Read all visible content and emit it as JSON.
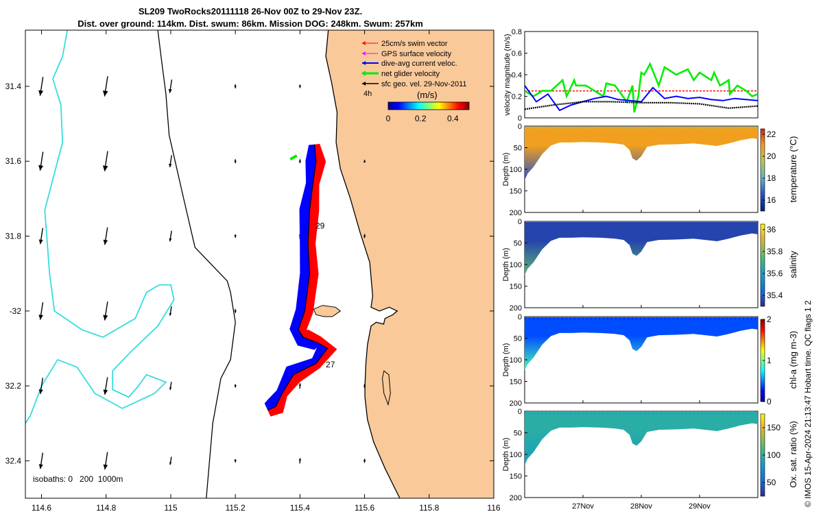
{
  "title": {
    "line1": "SL209 TwoRocks20111118 26-Nov 00Z to 29-Nov 23Z.",
    "line2": "Dist. over ground: 114km. Dist. swum: 86km. Mission DOG: 248km. Swum: 257km"
  },
  "credit": "© IMOS 15-Apr-2024 21:13:47 Hobart time. QC flags 1  2",
  "colors": {
    "land": "#f9c99a",
    "coast_iso": "#000000",
    "iso_1000": "#33dddd",
    "swim": "#ff0000",
    "dac": "#0000ff",
    "glider": "#00ee00",
    "sfc_geo": "#000000",
    "gps": "#ff00ff"
  },
  "chart_data": [
    {
      "id": "map",
      "type": "scatter",
      "xlim": [
        114.55,
        116
      ],
      "ylim": [
        -32.5,
        -31.25
      ],
      "xticks": [
        114.6,
        114.8,
        115,
        115.2,
        115.4,
        115.6,
        115.8,
        116
      ],
      "xtick_labels": [
        "114.6",
        "114.8",
        "115",
        "115.2",
        "115.4",
        "115.6",
        "115.8",
        "116"
      ],
      "yticks": [
        -31.4,
        -31.6,
        -31.8,
        -32,
        -32.2,
        -32.4
      ],
      "ytick_labels": [
        "31.4",
        "31.6",
        "31.8",
        "-32",
        "32.2",
        "32.4"
      ],
      "legend": {
        "placement": "top-right",
        "items": [
          {
            "label": "25cm/s swim vector",
            "color": "#ff0000"
          },
          {
            "label": "GPS surface velocity",
            "color": "#ff00ff"
          },
          {
            "label": "dive-avg current veloc.",
            "color": "#0000ff"
          },
          {
            "label": "net glider velocity",
            "color": "#00ee00"
          },
          {
            "label": "sfc geo. vel. 29-Nov-2011",
            "color": "#000000"
          }
        ]
      },
      "colorbar": {
        "label": "(m/s)",
        "range": [
          0,
          0.5
        ],
        "ticks": [
          0,
          0.2,
          0.4
        ],
        "tick_labels": [
          "0",
          "0.2",
          "0.4"
        ],
        "note": "4h"
      },
      "isobaths_label": "isobaths: 0   200  1000m",
      "track_labels": [
        {
          "text": "29",
          "lon": 115.448,
          "lat": -31.78
        },
        {
          "text": "27",
          "lon": 115.48,
          "lat": -32.15
        }
      ],
      "track": [
        [
          115.445,
          -31.555
        ],
        [
          115.45,
          -31.6
        ],
        [
          115.44,
          -31.66
        ],
        [
          115.43,
          -31.73
        ],
        [
          115.425,
          -31.82
        ],
        [
          115.43,
          -31.9
        ],
        [
          115.415,
          -32.0
        ],
        [
          115.395,
          -32.05
        ],
        [
          115.41,
          -32.07
        ],
        [
          115.455,
          -32.085
        ],
        [
          115.485,
          -32.1
        ],
        [
          115.45,
          -32.14
        ],
        [
          115.38,
          -32.17
        ],
        [
          115.345,
          -32.22
        ],
        [
          115.325,
          -32.255
        ],
        [
          115.3,
          -32.265
        ]
      ],
      "coastline": [
        [
          115.4878,
          -31.25
        ],
        [
          115.48,
          -31.32
        ],
        [
          115.498,
          -31.39
        ],
        [
          115.515,
          -31.47
        ],
        [
          115.512,
          -31.55
        ],
        [
          115.525,
          -31.62
        ],
        [
          115.556,
          -31.7
        ],
        [
          115.586,
          -31.79
        ],
        [
          115.616,
          -31.87
        ],
        [
          115.625,
          -31.96
        ],
        [
          115.62,
          -31.99
        ],
        [
          115.646,
          -32.0
        ],
        [
          115.676,
          -31.99
        ],
        [
          115.701,
          -32.0
        ],
        [
          115.687,
          -32.01
        ],
        [
          115.663,
          -32.02
        ],
        [
          115.659,
          -32.035
        ],
        [
          115.636,
          -32.03
        ],
        [
          115.62,
          -32.04
        ],
        [
          115.609,
          -32.09
        ],
        [
          115.604,
          -32.14
        ],
        [
          115.601,
          -32.2
        ],
        [
          115.601,
          -32.23
        ],
        [
          115.609,
          -32.29
        ],
        [
          115.628,
          -32.35
        ],
        [
          115.663,
          -32.42
        ],
        [
          115.709,
          -32.5
        ]
      ],
      "isobath_200": [
        [
          114.96,
          -31.25
        ],
        [
          114.97,
          -31.32
        ],
        [
          114.985,
          -31.42
        ],
        [
          114.995,
          -31.53
        ],
        [
          115.04,
          -31.7
        ],
        [
          115.075,
          -31.83
        ],
        [
          115.175,
          -31.92
        ],
        [
          115.185,
          -31.95
        ],
        [
          115.2,
          -32.03
        ],
        [
          115.185,
          -32.13
        ],
        [
          115.155,
          -32.18
        ],
        [
          115.13,
          -32.3
        ],
        [
          115.11,
          -32.5
        ]
      ],
      "isobath_1000": [
        [
          114.68,
          -31.25
        ],
        [
          114.665,
          -31.32
        ],
        [
          114.635,
          -31.38
        ],
        [
          114.66,
          -31.45
        ],
        [
          114.665,
          -31.55
        ],
        [
          114.61,
          -31.73
        ],
        [
          114.625,
          -31.9
        ],
        [
          114.64,
          -32.0
        ],
        [
          114.725,
          -32.05
        ],
        [
          114.79,
          -32.07
        ],
        [
          114.89,
          -32.02
        ],
        [
          114.925,
          -31.95
        ],
        [
          114.965,
          -31.93
        ],
        [
          115.0,
          -31.93
        ],
        [
          115.01,
          -31.97
        ],
        [
          114.96,
          -32.04
        ],
        [
          114.875,
          -32.11
        ],
        [
          114.82,
          -32.16
        ],
        [
          114.82,
          -32.21
        ],
        [
          114.87,
          -32.23
        ],
        [
          114.9,
          -32.2
        ],
        [
          114.925,
          -32.17
        ],
        [
          114.985,
          -32.19
        ],
        [
          114.95,
          -32.22
        ],
        [
          114.85,
          -32.26
        ],
        [
          114.765,
          -32.22
        ],
        [
          114.71,
          -32.15
        ],
        [
          114.65,
          -32.13
        ],
        [
          114.6,
          -32.2
        ],
        [
          114.565,
          -32.28
        ],
        [
          114.55,
          -32.3
        ]
      ],
      "rottnest": [
        [
          115.442,
          -31.995
        ],
        [
          115.47,
          -31.985
        ],
        [
          115.51,
          -31.99
        ],
        [
          115.525,
          -32.0
        ],
        [
          115.5,
          -32.015
        ],
        [
          115.475,
          -32.015
        ],
        [
          115.45,
          -32.01
        ],
        [
          115.442,
          -31.995
        ]
      ],
      "garden_island": [
        [
          115.66,
          -32.16
        ],
        [
          115.675,
          -32.17
        ],
        [
          115.68,
          -32.22
        ],
        [
          115.673,
          -32.25
        ],
        [
          115.66,
          -32.22
        ],
        [
          115.655,
          -32.18
        ],
        [
          115.66,
          -32.16
        ]
      ]
    },
    {
      "id": "velocity",
      "type": "line",
      "ylabel": "velocity magnitude (m/s)",
      "ylim": [
        0,
        0.8
      ],
      "yticks": [
        0,
        0.2,
        0.4,
        0.6,
        0.8
      ],
      "ytick_labels": [
        "0",
        "0.2",
        "0.4",
        "0.6",
        "0.8"
      ],
      "xlim": [
        0,
        4
      ],
      "series": [
        {
          "key": "swim",
          "color": "#ff0000",
          "x": [
            0,
            4
          ],
          "y": [
            0.25,
            0.25
          ]
        },
        {
          "key": "glider",
          "color": "#00ee00",
          "x": [
            0.0,
            0.15,
            0.3,
            0.45,
            0.65,
            0.72,
            0.85,
            0.88,
            1.05,
            1.35,
            1.4,
            1.55,
            1.75,
            1.85,
            1.88,
            1.95,
            2.0,
            2.05,
            2.15,
            2.3,
            2.4,
            2.6,
            2.8,
            2.9,
            3.0,
            3.2,
            3.25,
            3.35,
            3.5,
            3.52,
            3.65,
            3.8,
            3.9,
            4.0
          ],
          "y": [
            0.25,
            0.2,
            0.25,
            0.25,
            0.35,
            0.2,
            0.35,
            0.3,
            0.3,
            0.2,
            0.32,
            0.3,
            0.15,
            0.3,
            0.05,
            0.2,
            0.42,
            0.4,
            0.5,
            0.3,
            0.47,
            0.4,
            0.45,
            0.35,
            0.42,
            0.35,
            0.42,
            0.3,
            0.35,
            0.22,
            0.3,
            0.25,
            0.2,
            0.22
          ]
        },
        {
          "key": "dac",
          "color": "#0000ff",
          "x": [
            0.0,
            0.2,
            0.4,
            0.6,
            0.8,
            1.0,
            1.2,
            1.4,
            1.6,
            1.8,
            2.0,
            2.2,
            2.4,
            2.6,
            2.8,
            3.0,
            3.2,
            3.4,
            3.6,
            3.8,
            4.0
          ],
          "y": [
            0.3,
            0.15,
            0.22,
            0.07,
            0.12,
            0.15,
            0.18,
            0.2,
            0.17,
            0.16,
            0.15,
            0.28,
            0.18,
            0.2,
            0.18,
            0.19,
            0.17,
            0.16,
            0.18,
            0.17,
            0.16
          ]
        },
        {
          "key": "sfc_geo",
          "color": "#000000",
          "x": [
            0.0,
            0.5,
            1.0,
            1.5,
            2.0,
            2.5,
            3.0,
            3.5,
            4.0
          ],
          "y": [
            0.08,
            0.12,
            0.15,
            0.15,
            0.14,
            0.14,
            0.13,
            0.09,
            0.11
          ]
        }
      ]
    },
    {
      "id": "temperature",
      "type": "heatmap",
      "ylabel": "Depth (m)",
      "clabel": "temperature (°C)",
      "ylim": [
        200,
        0
      ],
      "yticks": [
        0,
        50,
        100,
        150,
        200
      ],
      "ytick_labels": [
        "0",
        "50",
        "100",
        "150",
        "200"
      ],
      "crange": [
        15,
        22.5
      ],
      "cticks": [
        16,
        18,
        20,
        22
      ],
      "ctick_labels": [
        "16",
        "18",
        "20",
        "22"
      ],
      "fill_value": 21.0
    },
    {
      "id": "salinity",
      "type": "heatmap",
      "ylabel": "Depth (m)",
      "clabel": "salinity",
      "ylim": [
        200,
        0
      ],
      "yticks": [
        0,
        50,
        100,
        150,
        200
      ],
      "ytick_labels": [
        "0",
        "50",
        "100",
        "150",
        "200"
      ],
      "crange": [
        35.3,
        36.05
      ],
      "cticks": [
        35.4,
        35.6,
        35.8,
        36
      ],
      "ctick_labels": [
        "35.4",
        "35.6",
        "35.8",
        "36"
      ],
      "fill_value": 35.35
    },
    {
      "id": "chla",
      "type": "heatmap",
      "ylabel": "Depth (m)",
      "clabel": "chl-a (mg m-3)",
      "ylim": [
        200,
        0
      ],
      "yticks": [
        0,
        50,
        100,
        150,
        200
      ],
      "ytick_labels": [
        "0",
        "50",
        "100",
        "150",
        "200"
      ],
      "crange": [
        0,
        2
      ],
      "cticks": [
        0,
        1,
        2
      ],
      "ctick_labels": [
        "0",
        "1",
        "2"
      ],
      "fill_value": 0.4
    },
    {
      "id": "oxygen",
      "type": "heatmap",
      "ylabel": "Depth (m)",
      "clabel": "Ox. sat. ratio (%)",
      "ylim": [
        200,
        0
      ],
      "yticks": [
        0,
        50,
        100,
        150,
        200
      ],
      "ytick_labels": [
        "0",
        "50",
        "100",
        "150",
        "200"
      ],
      "crange": [
        25,
        175
      ],
      "cticks": [
        50,
        100,
        150
      ],
      "ctick_labels": [
        "50",
        "100",
        "150"
      ],
      "fill_value": 97,
      "xticks": [
        1,
        2,
        3
      ],
      "xtick_labels": [
        "27Nov",
        "28Nov",
        "29Nov"
      ]
    }
  ],
  "section_bottom_profile": {
    "x": [
      0.0,
      0.05,
      0.15,
      0.3,
      0.45,
      0.6,
      0.8,
      1.0,
      1.3,
      1.55,
      1.7,
      1.8,
      1.85,
      1.92,
      2.0,
      2.1,
      2.3,
      2.6,
      2.9,
      3.1,
      3.3,
      3.5,
      3.7,
      3.9,
      4.0
    ],
    "depth": [
      125,
      110,
      95,
      65,
      45,
      38,
      38,
      37,
      38,
      40,
      43,
      55,
      75,
      80,
      70,
      48,
      43,
      42,
      40,
      43,
      46,
      40,
      33,
      28,
      30
    ]
  }
}
